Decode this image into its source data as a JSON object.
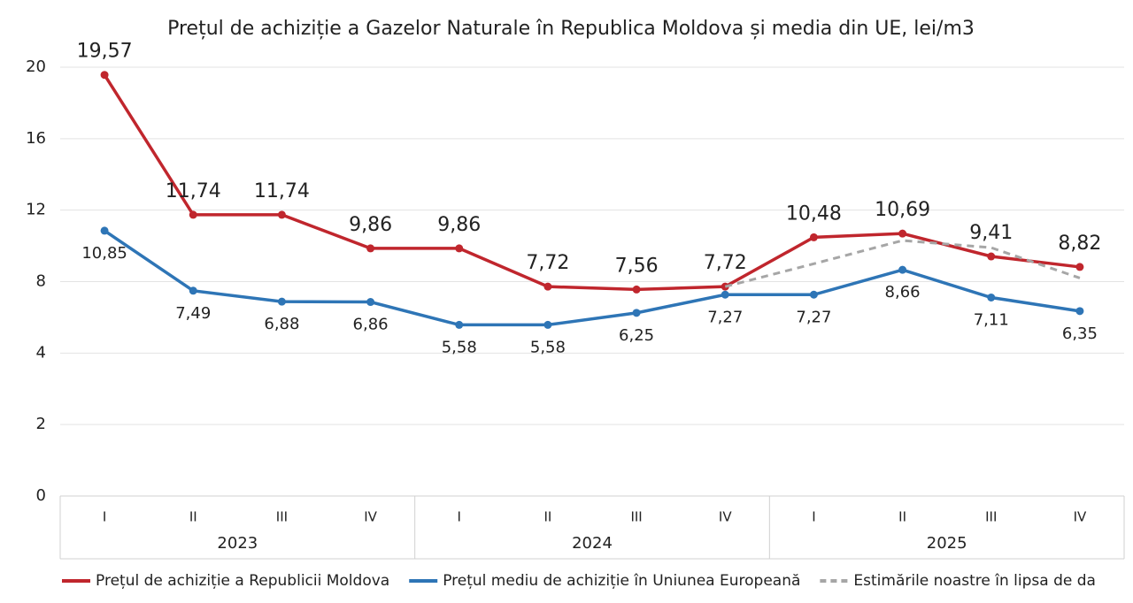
{
  "chart_data": {
    "type": "line",
    "title": "Prețul de achiziție a Gazelor Naturale în Republica Moldova și media din UE, lei/m3",
    "categories": [
      "I",
      "II",
      "III",
      "IV",
      "I",
      "II",
      "III",
      "IV",
      "I",
      "II",
      "III",
      "IV"
    ],
    "groups": [
      "2023",
      "2024",
      "2025"
    ],
    "series": [
      {
        "name": "Prețul de achiziție a Republicii Moldova",
        "color": "#c0262d",
        "values": [
          19.57,
          11.74,
          11.74,
          9.86,
          9.86,
          7.72,
          7.56,
          7.72,
          10.48,
          10.69,
          9.41,
          8.82
        ],
        "value_labels": [
          "19,57",
          "11,74",
          "11,74",
          "9,86",
          "9,86",
          "7,72",
          "7,56",
          "7,72",
          "10,48",
          "10,69",
          "9,41",
          "8,82"
        ]
      },
      {
        "name": "Prețul mediu de achiziție în Uniunea Europeană",
        "color": "#2e75b6",
        "values": [
          10.85,
          7.49,
          6.88,
          6.86,
          5.58,
          5.58,
          6.25,
          7.27,
          7.27,
          8.66,
          7.11,
          6.35
        ],
        "value_labels": [
          "10,85",
          "7,49",
          "6,88",
          "6,86",
          "5,58",
          "5,58",
          "6,25",
          "7,27",
          "7,27",
          "8,66",
          "7,11",
          "6,35"
        ]
      },
      {
        "name": "Estimările noastre în lipsa de da",
        "color": "#a6a6a6",
        "dashed": true,
        "values": [
          null,
          null,
          null,
          null,
          null,
          null,
          null,
          7.72,
          9.0,
          10.3,
          9.9,
          8.2
        ]
      }
    ],
    "ylim": [
      0,
      20
    ],
    "yticks": [
      0,
      2,
      4,
      8,
      12,
      16,
      20
    ],
    "grid": true,
    "legend": "bottom"
  }
}
